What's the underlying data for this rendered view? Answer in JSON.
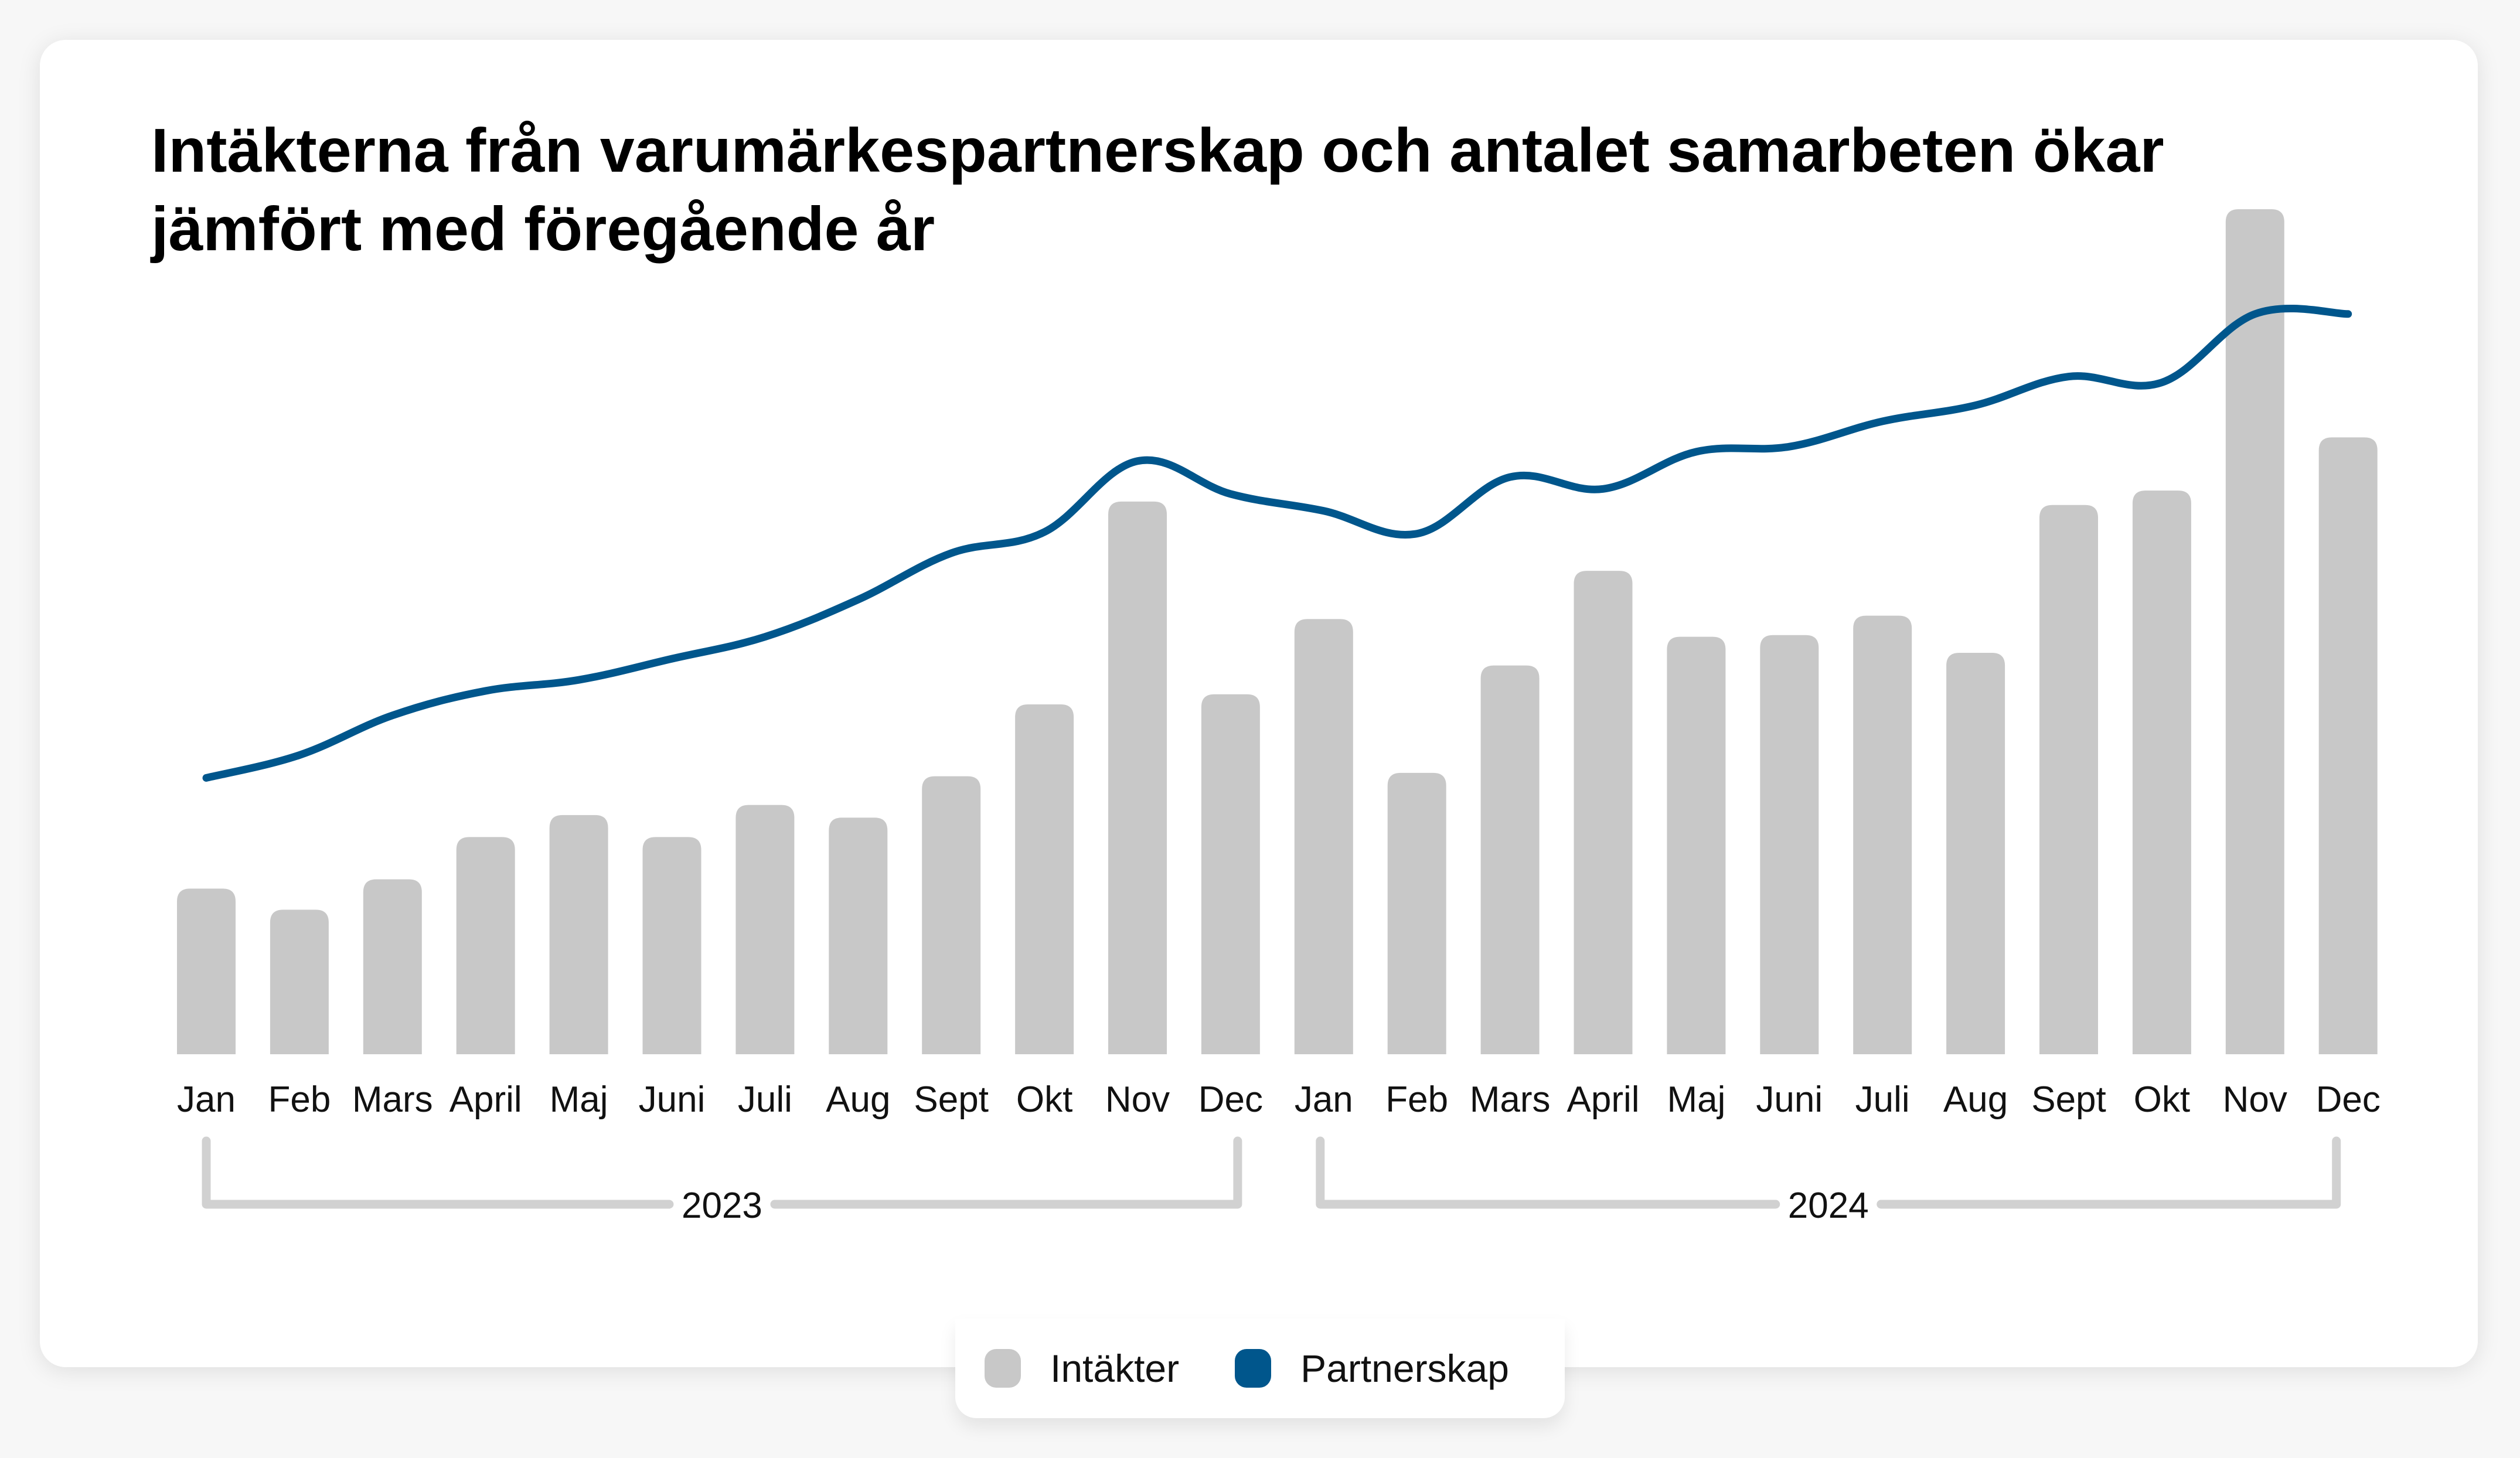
{
  "title": "Intäkterna från varumärkespartnerskap och antalet samarbeten ökar jämfört med föregående år",
  "chart_data": {
    "type": "bar",
    "title": "Intäkterna från varumärkespartnerskap och antalet samarbeten ökar jämfört med föregående år",
    "xlabel": "",
    "ylabel": "",
    "grid": false,
    "legend_position": "bottom-center",
    "categories": [
      "Jan",
      "Feb",
      "Mars",
      "April",
      "Maj",
      "Juni",
      "Juli",
      "Aug",
      "Sept",
      "Okt",
      "Nov",
      "Dec",
      "Jan",
      "Feb",
      "Mars",
      "April",
      "Maj",
      "Juni",
      "Juli",
      "Aug",
      "Sept",
      "Okt",
      "Nov",
      "Dec"
    ],
    "groups": [
      {
        "label": "2023",
        "from": 0,
        "to": 11
      },
      {
        "label": "2024",
        "from": 12,
        "to": 23
      }
    ],
    "ylim": [
      0,
      100
    ],
    "series": [
      {
        "name": "Intäkter",
        "type": "bar",
        "color": "#c8c8c8",
        "values": [
          19.6,
          17.1,
          20.7,
          25.7,
          28.3,
          25.7,
          29.5,
          28.0,
          32.9,
          41.4,
          65.4,
          42.6,
          51.5,
          33.3,
          46.0,
          57.2,
          49.4,
          49.6,
          51.9,
          47.5,
          65.0,
          66.7,
          100,
          73.0
        ]
      },
      {
        "name": "Partnerskap",
        "type": "line",
        "color": "#00568c",
        "values": [
          32.7,
          35.4,
          40.1,
          43.0,
          44.3,
          46.8,
          49.4,
          53.8,
          59.3,
          61.8,
          70.2,
          66.3,
          64.3,
          61.6,
          68.3,
          66.9,
          71.3,
          71.9,
          74.9,
          76.8,
          80.2,
          79.5,
          87.6,
          87.6
        ]
      }
    ]
  },
  "legend": [
    {
      "label": "Intäkter",
      "color": "#c8c8c8"
    },
    {
      "label": "Partnerskap",
      "color": "#00568c"
    }
  ],
  "bracket_color": "#d1d1d1"
}
